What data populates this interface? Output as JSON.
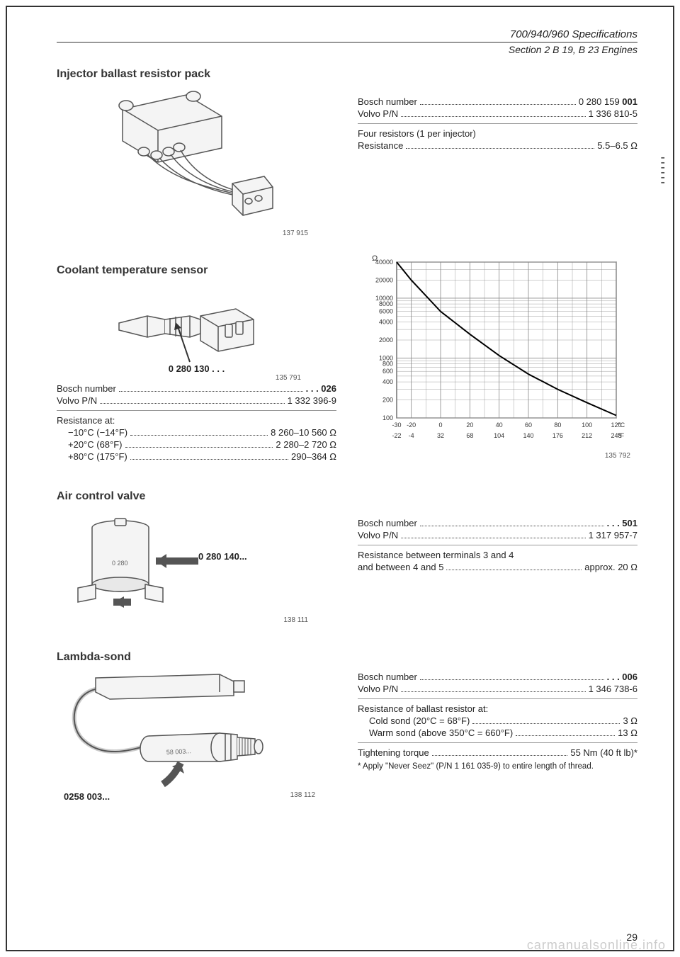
{
  "header": {
    "main": "700/940/960 Specifications",
    "sub": "Section 2 B 19, B 23 Engines"
  },
  "injector": {
    "title": "Injector ballast resistor pack",
    "fig_num": "137 915",
    "bosch_label": "Bosch number",
    "bosch_value": "0 280 159 001",
    "volvo_label": "Volvo P/N",
    "volvo_value": "1 336 810-5",
    "resistors_label": "Four resistors (1 per injector)",
    "resistance_label": "Resistance",
    "resistance_value": "5.5–6.5 Ω"
  },
  "coolant": {
    "title": "Coolant temperature sensor",
    "model": "0 280 130 . . .",
    "fig_num": "135 791",
    "bosch_label": "Bosch number",
    "bosch_value": ". . . 026",
    "volvo_label": "Volvo P/N",
    "volvo_value": "1 332 396-9",
    "res_header": "Resistance at:",
    "r1_label": "−10°C (−14°F)",
    "r1_value": "8 260–10 560 Ω",
    "r2_label": "+20°C (68°F)",
    "r2_value": "2 280–2 720 Ω",
    "r3_label": "+80°C (175°F)",
    "r3_value": "290–364 Ω",
    "chart": {
      "type": "log-line",
      "y_label": "Ω",
      "y_ticks": [
        100,
        200,
        400,
        600,
        800,
        1000,
        2000,
        4000,
        6000,
        8000,
        10000,
        20000,
        40000
      ],
      "y_tick_labels": [
        "100",
        "200",
        "400",
        "600",
        "800",
        "1000",
        "2000",
        "4000",
        "6000",
        "8000",
        "10000",
        "20000",
        "40000"
      ],
      "x_ticks_c": [
        -30,
        -20,
        0,
        20,
        40,
        60,
        80,
        100,
        120
      ],
      "x_labels_c": [
        "-30",
        "-20",
        "0",
        "20",
        "40",
        "60",
        "80",
        "100",
        "120"
      ],
      "x_labels_f": [
        "-22",
        "-4",
        "32",
        "68",
        "104",
        "140",
        "176",
        "212",
        "248"
      ],
      "x_unit_c": "°C",
      "x_unit_f": "°F",
      "line": [
        [
          -30,
          40000
        ],
        [
          -20,
          20000
        ],
        [
          0,
          6000
        ],
        [
          20,
          2500
        ],
        [
          40,
          1100
        ],
        [
          60,
          540
        ],
        [
          80,
          300
        ],
        [
          100,
          180
        ],
        [
          120,
          110
        ]
      ],
      "fig_num": "135 792",
      "grid_color": "#888",
      "line_color": "#000",
      "bg": "#ffffff"
    }
  },
  "air_valve": {
    "title": "Air control valve",
    "model": "0 280 140...",
    "arrow_label": "0 280",
    "fig_num": "138 111",
    "bosch_label": "Bosch number",
    "bosch_value": ". . . 501",
    "volvo_label": "Volvo P/N",
    "volvo_value": "1 317 957-7",
    "res1_label": "Resistance between terminals 3 and 4",
    "res2_label": "and between 4 and 5",
    "res_value": "approx. 20 Ω"
  },
  "lambda": {
    "title": "Lambda-sond",
    "model": "0258 003...",
    "fig_num": "138 112",
    "bosch_label": "Bosch number",
    "bosch_value": ". . . 006",
    "volvo_label": "Volvo P/N",
    "volvo_value": "1 346 738-6",
    "res_header": "Resistance of ballast resistor at:",
    "cold_label": "Cold sond (20°C = 68°F)",
    "cold_value": "3 Ω",
    "warm_label": "Warm sond (above 350°C = 660°F)",
    "warm_value": "13 Ω",
    "torque_label": "Tightening torque",
    "torque_value": "55 Nm (40 ft lb)*",
    "footnote": "* Apply \"Never Seez\" (P/N 1 161 035-9) to entire length of thread."
  },
  "page_num": "29",
  "watermark": "carmanualsonline.info",
  "colors": {
    "text": "#222222",
    "rule": "#333333",
    "grid": "#888888",
    "illus_stroke": "#555555",
    "illus_fill": "#eeeeee"
  }
}
